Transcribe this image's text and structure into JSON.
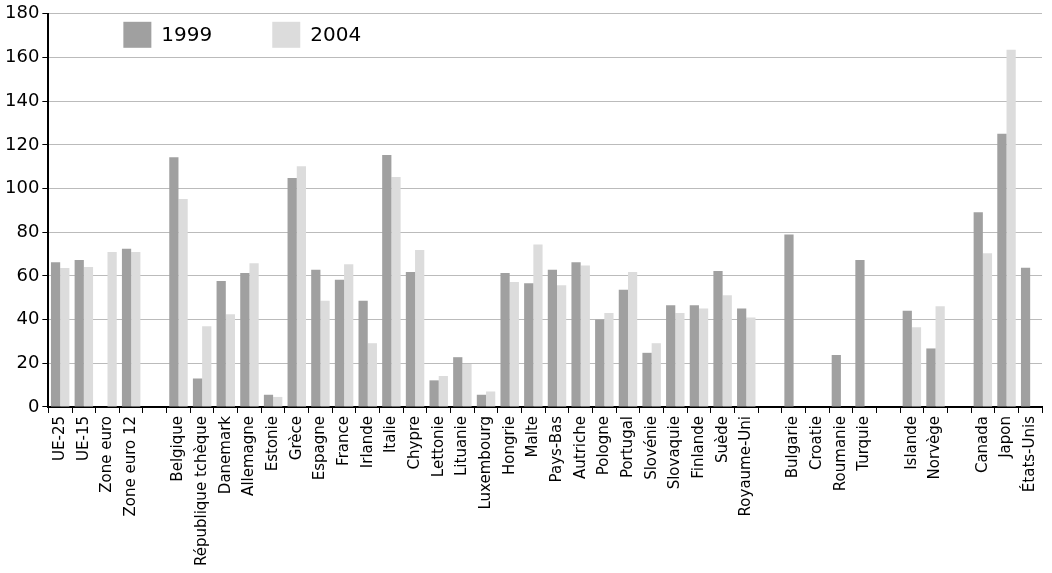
{
  "chart_data": {
    "type": "bar",
    "categories": [
      "UE-25",
      "UE-15",
      "Zone euro",
      "Zone euro 12",
      null,
      "Belgique",
      "République tchèque",
      "Danemark",
      "Allemagne",
      "Estonie",
      "Grèce",
      "Espagne",
      "France",
      "Irlande",
      "Italie",
      "Chypre",
      "Lettonie",
      "Lituanie",
      "Luxembourg",
      "Hongrie",
      "Malte",
      "Pays-Bas",
      "Autriche",
      "Pologne",
      "Portugal",
      "Slovénie",
      "Slovaquie",
      "Finlande",
      "Suède",
      "Royaume-Uni",
      null,
      "Bulgarie",
      "Croatie",
      "Roumanie",
      "Turquie",
      null,
      "Islande",
      "Norvège",
      null,
      "Canada",
      "Japon",
      "États-Unis"
    ],
    "series": [
      {
        "name": "1999",
        "color": "#a0a0a0",
        "values": [
          66.3,
          67.3,
          null,
          72.4,
          null,
          114.3,
          13.0,
          57.7,
          61.3,
          5.6,
          104.8,
          62.8,
          58.2,
          48.6,
          115.4,
          61.8,
          12.2,
          22.8,
          5.6,
          61.3,
          56.7,
          62.8,
          66.3,
          40.0,
          53.7,
          24.8,
          46.6,
          46.6,
          62.3,
          45.1,
          null,
          79.0,
          null,
          23.8,
          67.3,
          null,
          44.1,
          26.8,
          null,
          89.1,
          125.1,
          63.8
        ]
      },
      {
        "name": "2004",
        "color": "#dcdcdc",
        "values": [
          63.6,
          64.1,
          70.9,
          70.9,
          null,
          95.2,
          37.0,
          42.5,
          65.8,
          4.6,
          110.2,
          48.6,
          65.3,
          29.2,
          105.3,
          71.9,
          14.2,
          19.7,
          7.1,
          57.2,
          74.4,
          55.7,
          64.8,
          43.0,
          61.8,
          29.2,
          43.0,
          45.1,
          51.1,
          41.0,
          null,
          null,
          null,
          null,
          null,
          null,
          36.5,
          46.1,
          null,
          70.4,
          163.5,
          null
        ]
      }
    ],
    "ylim": [
      0,
      180
    ],
    "yticks": [
      0,
      20,
      40,
      60,
      80,
      100,
      120,
      140,
      160,
      180
    ],
    "grid": "y",
    "legend": "top left"
  }
}
